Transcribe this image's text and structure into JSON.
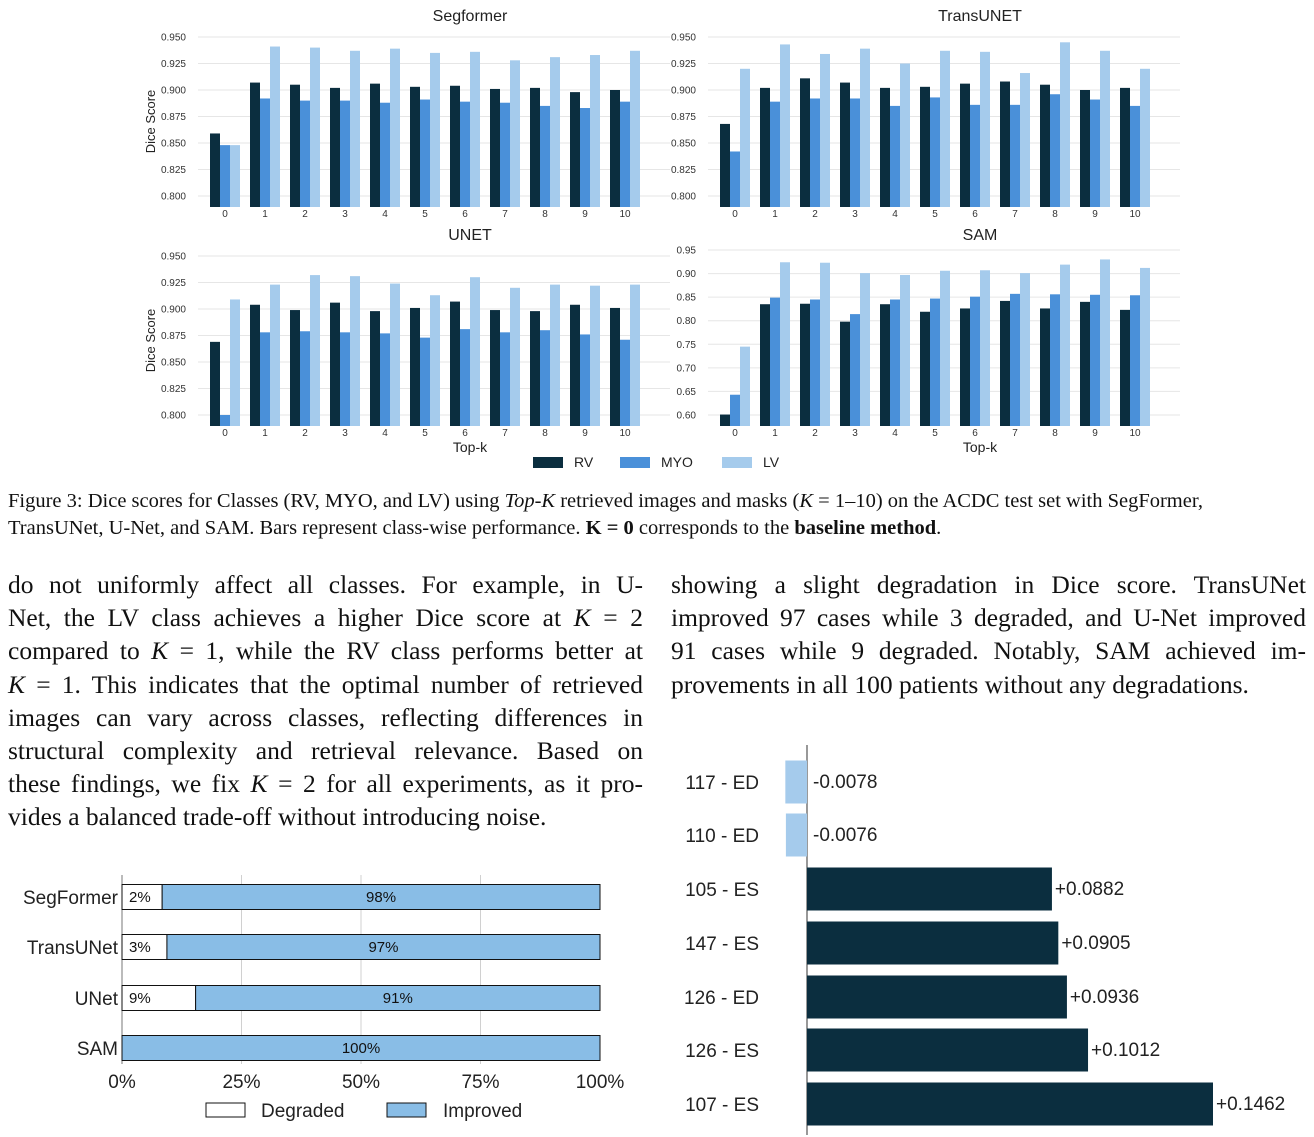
{
  "figure": {
    "classes": [
      "RV",
      "MYO",
      "LV"
    ],
    "colors": {
      "RV": "#0b2e3f",
      "MYO": "#4a90d9",
      "LV": "#a5cbec"
    },
    "panels": [
      {
        "title": "Segformer",
        "ylabel": "Dice Score",
        "xlabel": "",
        "ylim": [
          0.79,
          0.955
        ],
        "yticks": [
          "0.950",
          "0.925",
          "0.900",
          "0.875",
          "0.850",
          "0.825",
          "0.800"
        ],
        "categories": [
          "0",
          "1",
          "2",
          "3",
          "4",
          "5",
          "6",
          "7",
          "8",
          "9",
          "10"
        ],
        "RV": [
          0.859,
          0.907,
          0.905,
          0.902,
          0.906,
          0.903,
          0.904,
          0.901,
          0.902,
          0.898,
          0.9
        ],
        "MYO": [
          0.848,
          0.892,
          0.89,
          0.89,
          0.888,
          0.891,
          0.889,
          0.888,
          0.885,
          0.883,
          0.889
        ],
        "LV": [
          0.848,
          0.941,
          0.94,
          0.937,
          0.939,
          0.935,
          0.936,
          0.928,
          0.931,
          0.933,
          0.937
        ]
      },
      {
        "title": "TransUNET",
        "ylabel": "",
        "xlabel": "",
        "ylim": [
          0.79,
          0.955
        ],
        "yticks": [
          "0.950",
          "0.925",
          "0.900",
          "0.875",
          "0.850",
          "0.825",
          "0.800"
        ],
        "categories": [
          "0",
          "1",
          "2",
          "3",
          "4",
          "5",
          "6",
          "7",
          "8",
          "9",
          "10"
        ],
        "RV": [
          0.868,
          0.902,
          0.911,
          0.907,
          0.902,
          0.903,
          0.906,
          0.908,
          0.905,
          0.9,
          0.902
        ],
        "MYO": [
          0.842,
          0.889,
          0.892,
          0.892,
          0.885,
          0.893,
          0.886,
          0.886,
          0.896,
          0.891,
          0.885
        ],
        "LV": [
          0.92,
          0.943,
          0.934,
          0.939,
          0.925,
          0.937,
          0.936,
          0.916,
          0.945,
          0.937,
          0.92
        ]
      },
      {
        "title": "UNET",
        "ylabel": "Dice Score",
        "xlabel": "Top-k",
        "ylim": [
          0.79,
          0.955
        ],
        "yticks": [
          "0.950",
          "0.925",
          "0.900",
          "0.875",
          "0.850",
          "0.825",
          "0.800"
        ],
        "categories": [
          "0",
          "1",
          "2",
          "3",
          "4",
          "5",
          "6",
          "7",
          "8",
          "9",
          "10"
        ],
        "RV": [
          0.869,
          0.904,
          0.899,
          0.906,
          0.898,
          0.901,
          0.907,
          0.899,
          0.898,
          0.904,
          0.901
        ],
        "MYO": [
          0.8,
          0.878,
          0.879,
          0.878,
          0.877,
          0.873,
          0.881,
          0.878,
          0.88,
          0.876,
          0.871
        ],
        "LV": [
          0.909,
          0.923,
          0.932,
          0.931,
          0.924,
          0.913,
          0.93,
          0.92,
          0.923,
          0.922,
          0.923
        ]
      },
      {
        "title": "SAM",
        "ylabel": "",
        "xlabel": "Top-k",
        "ylim": [
          0.59,
          0.955
        ],
        "yticks": [
          "0.95",
          "0.90",
          "0.85",
          "0.80",
          "0.75",
          "0.70",
          "0.65",
          "0.60"
        ],
        "categories": [
          "0",
          "1",
          "2",
          "3",
          "4",
          "5",
          "6",
          "7",
          "8",
          "9",
          "10"
        ],
        "RV": [
          0.601,
          0.835,
          0.836,
          0.798,
          0.835,
          0.819,
          0.826,
          0.842,
          0.826,
          0.84,
          0.823
        ],
        "MYO": [
          0.643,
          0.849,
          0.845,
          0.814,
          0.845,
          0.847,
          0.851,
          0.857,
          0.856,
          0.855,
          0.854
        ],
        "LV": [
          0.745,
          0.924,
          0.923,
          0.901,
          0.897,
          0.906,
          0.907,
          0.901,
          0.919,
          0.93,
          0.912
        ]
      }
    ],
    "legend": [
      "RV",
      "MYO",
      "LV"
    ]
  },
  "caption": {
    "p1": "Figure 3: Dice scores for Classes (RV, MYO, and LV) using ",
    "p2": "Top-K",
    "p3": " retrieved images and masks (",
    "p4": "K",
    "p5": " = 1–10) on the ACDC test set with SegFormer,",
    "p6": "TransUNet, U-Net, and SAM. Bars represent class-wise performance. ",
    "p7": "K = 0",
    "p8": " corresponds to the ",
    "p9": "baseline method",
    "p10": "."
  },
  "body_left": {
    "l1": "do not uniformly affect all classes.  For example, in U-",
    "l2a": "Net, the LV class achieves a higher Dice score at ",
    "l2b": "K",
    "l2c": " = 2",
    "l3a": "compared to ",
    "l3b": "K",
    "l3c": " = 1, while the RV class performs better at",
    "l4a": "K",
    "l4b": " = 1. This indicates that the optimal number of retrieved",
    "l5": "images can vary across classes, reflecting differences in",
    "l6": "structural complexity and retrieval relevance.  Based on",
    "l7a": "these findings, we fix ",
    "l7b": "K",
    "l7c": " = 2 for all experiments, as it pro-",
    "l8": "vides a balanced trade-off without introducing noise."
  },
  "body_right": {
    "l1": "showing a slight degradation in Dice score.  TransUNet",
    "l2": "improved 97 cases while 3 degraded, and U-Net improved",
    "l3": "91 cases while 9 degraded.  Notably, SAM achieved im-",
    "l4": "provements in all 100 patients without any degradations."
  },
  "chart_data": [
    {
      "type": "bar",
      "title": "Segformer",
      "ylabel": "Dice Score",
      "categories": [
        "0",
        "1",
        "2",
        "3",
        "4",
        "5",
        "6",
        "7",
        "8",
        "9",
        "10"
      ],
      "series": [
        {
          "name": "RV",
          "values": [
            0.859,
            0.907,
            0.905,
            0.902,
            0.906,
            0.903,
            0.904,
            0.901,
            0.902,
            0.898,
            0.9
          ]
        },
        {
          "name": "MYO",
          "values": [
            0.848,
            0.892,
            0.89,
            0.89,
            0.888,
            0.891,
            0.889,
            0.888,
            0.885,
            0.883,
            0.889
          ]
        },
        {
          "name": "LV",
          "values": [
            0.848,
            0.941,
            0.94,
            0.937,
            0.939,
            0.935,
            0.936,
            0.928,
            0.931,
            0.933,
            0.937
          ]
        }
      ]
    },
    {
      "type": "bar",
      "title": "TransUNET",
      "categories": [
        "0",
        "1",
        "2",
        "3",
        "4",
        "5",
        "6",
        "7",
        "8",
        "9",
        "10"
      ],
      "series": [
        {
          "name": "RV",
          "values": [
            0.868,
            0.902,
            0.911,
            0.907,
            0.902,
            0.903,
            0.906,
            0.908,
            0.905,
            0.9,
            0.902
          ]
        },
        {
          "name": "MYO",
          "values": [
            0.842,
            0.889,
            0.892,
            0.892,
            0.885,
            0.893,
            0.886,
            0.886,
            0.896,
            0.891,
            0.885
          ]
        },
        {
          "name": "LV",
          "values": [
            0.92,
            0.943,
            0.934,
            0.939,
            0.925,
            0.937,
            0.936,
            0.916,
            0.945,
            0.937,
            0.92
          ]
        }
      ]
    },
    {
      "type": "bar",
      "title": "UNET",
      "ylabel": "Dice Score",
      "xlabel": "Top-k",
      "categories": [
        "0",
        "1",
        "2",
        "3",
        "4",
        "5",
        "6",
        "7",
        "8",
        "9",
        "10"
      ],
      "series": [
        {
          "name": "RV",
          "values": [
            0.869,
            0.904,
            0.899,
            0.906,
            0.898,
            0.901,
            0.907,
            0.899,
            0.898,
            0.904,
            0.901
          ]
        },
        {
          "name": "MYO",
          "values": [
            0.8,
            0.878,
            0.879,
            0.878,
            0.877,
            0.873,
            0.881,
            0.878,
            0.88,
            0.876,
            0.871
          ]
        },
        {
          "name": "LV",
          "values": [
            0.909,
            0.923,
            0.932,
            0.931,
            0.924,
            0.913,
            0.93,
            0.92,
            0.923,
            0.922,
            0.923
          ]
        }
      ]
    },
    {
      "type": "bar",
      "title": "SAM",
      "xlabel": "Top-k",
      "categories": [
        "0",
        "1",
        "2",
        "3",
        "4",
        "5",
        "6",
        "7",
        "8",
        "9",
        "10"
      ],
      "series": [
        {
          "name": "RV",
          "values": [
            0.601,
            0.835,
            0.836,
            0.798,
            0.835,
            0.819,
            0.826,
            0.842,
            0.826,
            0.84,
            0.823
          ]
        },
        {
          "name": "MYO",
          "values": [
            0.643,
            0.849,
            0.845,
            0.814,
            0.845,
            0.847,
            0.851,
            0.857,
            0.856,
            0.855,
            0.854
          ]
        },
        {
          "name": "LV",
          "values": [
            0.745,
            0.924,
            0.923,
            0.901,
            0.897,
            0.906,
            0.907,
            0.901,
            0.919,
            0.93,
            0.912
          ]
        }
      ]
    },
    {
      "type": "bar",
      "orientation": "horizontal-stacked",
      "categories": [
        "SegFormer",
        "TransUNet",
        "UNet",
        "SAM"
      ],
      "xticks": [
        "0%",
        "25%",
        "50%",
        "75%",
        "100%"
      ],
      "series": [
        {
          "name": "Degraded",
          "values": [
            2,
            3,
            9,
            0
          ],
          "labels": [
            "2%",
            "3%",
            "9%",
            ""
          ],
          "color": "#ffffff"
        },
        {
          "name": "Improved",
          "values": [
            98,
            97,
            91,
            100
          ],
          "labels": [
            "98%",
            "97%",
            "91%",
            "100%"
          ],
          "color": "#89bde6"
        }
      ]
    },
    {
      "type": "bar",
      "orientation": "horizontal",
      "categories": [
        "117 - ED",
        "110 - ED",
        "105 - ES",
        "147 - ES",
        "126 - ED",
        "126 - ES",
        "107 - ES"
      ],
      "values": [
        -0.0078,
        -0.0076,
        0.0882,
        0.0905,
        0.0936,
        0.1012,
        0.1462
      ],
      "labels": [
        "-0.0078",
        "-0.0076",
        "+0.0882",
        "+0.0905",
        "+0.0936",
        "+0.1012",
        "+0.1462"
      ],
      "colors": {
        "negative": "#a5cbec",
        "positive": "#0b2e3f"
      }
    }
  ]
}
